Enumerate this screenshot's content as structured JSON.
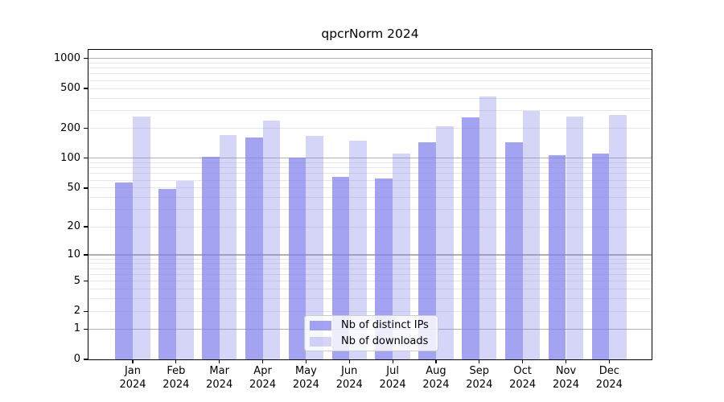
{
  "chart_data": {
    "type": "bar",
    "title": "qpcrNorm 2024",
    "categories": [
      "Jan 2024",
      "Feb 2024",
      "Mar 2024",
      "Apr 2024",
      "May 2024",
      "Jun 2024",
      "Jul 2024",
      "Aug 2024",
      "Sep 2024",
      "Oct 2024",
      "Nov 2024",
      "Dec 2024"
    ],
    "series": [
      {
        "name": "Nb of distinct IPs",
        "color": "rgba(127,127,235,0.72)",
        "values": [
          57,
          49,
          104,
          163,
          102,
          65,
          62,
          144,
          258,
          144,
          107,
          111
        ]
      },
      {
        "name": "Nb of downloads",
        "color": "rgba(127,127,235,0.33)",
        "values": [
          263,
          59,
          170,
          240,
          167,
          150,
          111,
          208,
          420,
          298,
          260,
          270
        ]
      }
    ],
    "xlabel": "",
    "ylabel": "",
    "yscale": "log1p",
    "ylim": [
      0,
      1216
    ],
    "yticks": [
      0,
      1,
      2,
      5,
      10,
      20,
      50,
      100,
      200,
      500,
      1000
    ],
    "grid": "on",
    "legend_position": "lower-center-inside",
    "colors": {
      "major_grid": "#b0b0b0",
      "minor_grid": "#e7e7e7",
      "axis": "#000000",
      "background": "#ffffff"
    }
  }
}
